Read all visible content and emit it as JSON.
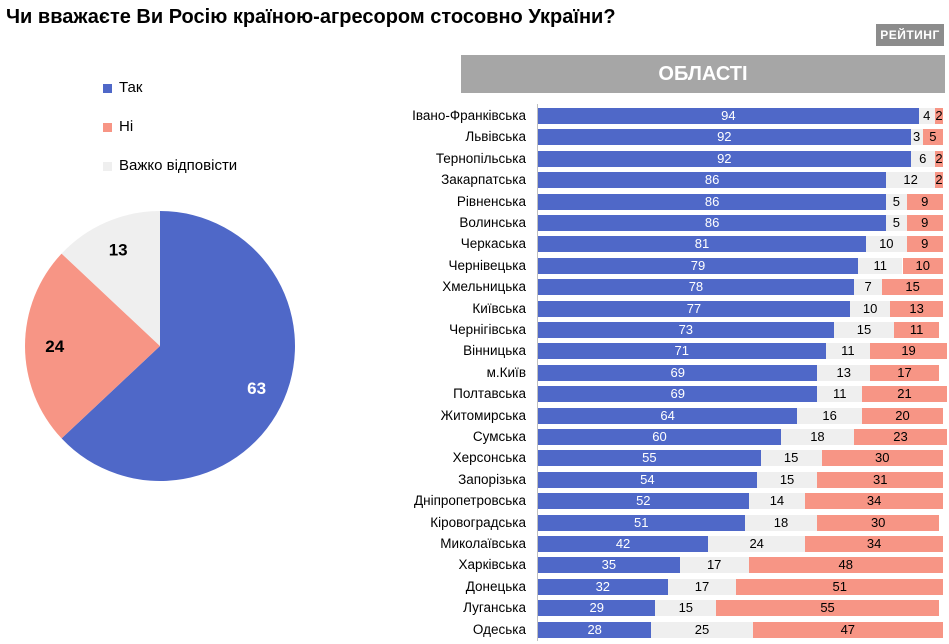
{
  "title": "Чи вважаєте Ви Росію країною-агресором стосовно України?",
  "brand": "РЕЙТИНГ",
  "colors": {
    "yes": "#4f68c8",
    "no": "#f79585",
    "hard": "#efefef"
  },
  "chart_data": [
    {
      "type": "pie",
      "categories": [
        "Так",
        "Ні",
        "Важко відповісти"
      ],
      "values": [
        63,
        24,
        13
      ],
      "legend_position": "top-left"
    },
    {
      "type": "bar",
      "stacked": true,
      "orientation": "horizontal",
      "title": "ОБЛАСТІ",
      "categories": [
        "Івано-Франківська",
        "Львівська",
        "Тернопільська",
        "Закарпатська",
        "Рівненська",
        "Волинська",
        "Черкаська",
        "Чернівецька",
        "Хмельницька",
        "Київська",
        "Чернігівська",
        "Вінницька",
        "м.Київ",
        "Полтавська",
        "Житомирська",
        "Сумська",
        "Херсонська",
        "Запорізька",
        "Дніпропетровська",
        "Кіровоградська",
        "Миколаївська",
        "Харківська",
        "Донецька",
        "Луганська",
        "Одеська"
      ],
      "series": [
        {
          "name": "Так",
          "values": [
            94,
            92,
            92,
            86,
            86,
            86,
            81,
            79,
            78,
            77,
            73,
            71,
            69,
            69,
            64,
            60,
            55,
            54,
            52,
            51,
            42,
            35,
            32,
            29,
            28
          ]
        },
        {
          "name": "Важко відповісти",
          "values": [
            4,
            3,
            6,
            12,
            5,
            5,
            10,
            11,
            7,
            10,
            15,
            11,
            13,
            11,
            16,
            18,
            15,
            15,
            14,
            18,
            24,
            17,
            17,
            15,
            25
          ]
        },
        {
          "name": "Ні",
          "values": [
            2,
            5,
            2,
            2,
            9,
            9,
            9,
            10,
            15,
            13,
            11,
            19,
            17,
            21,
            20,
            23,
            30,
            31,
            34,
            30,
            34,
            48,
            51,
            55,
            47
          ]
        }
      ],
      "xlim": [
        0,
        100
      ],
      "grid": false
    }
  ]
}
